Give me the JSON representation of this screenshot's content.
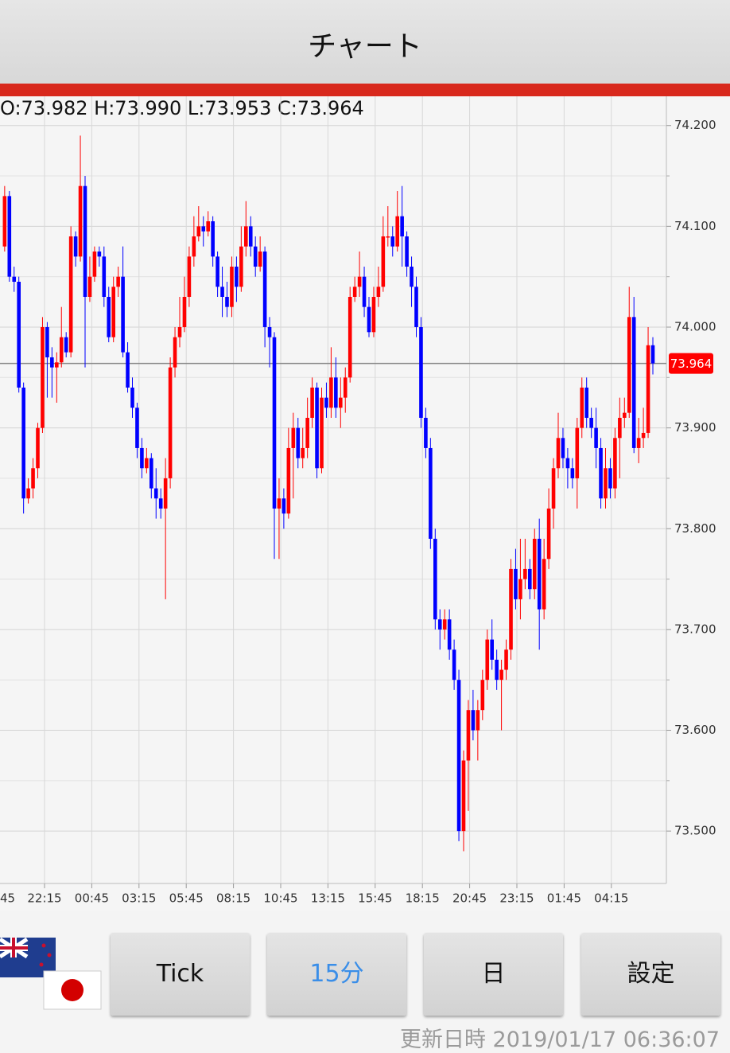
{
  "header": {
    "title": "チャート"
  },
  "chart_data": {
    "type": "candlestick",
    "info_label": "O:73.982 H:73.990 L:73.953 C:73.964",
    "current_price": 73.964,
    "up_color": "#ff0000",
    "down_color": "#0000ff",
    "ylim": [
      73.448,
      74.229
    ],
    "yticks": [
      {
        "value": 73.5,
        "label": "73.500"
      },
      {
        "value": 73.6,
        "label": "73.600"
      },
      {
        "value": 73.7,
        "label": "73.700"
      },
      {
        "value": 73.8,
        "label": "73.800"
      },
      {
        "value": 73.9,
        "label": "73.900"
      },
      {
        "value": 74.0,
        "label": "74.000"
      },
      {
        "value": 74.1,
        "label": "74.100"
      },
      {
        "value": 74.2,
        "label": "74.200"
      }
    ],
    "y_minor_ticks": [
      73.55,
      73.65,
      73.75,
      73.85,
      73.95,
      74.05,
      74.15
    ],
    "xticks": [
      "45",
      "22:15",
      "00:45",
      "03:15",
      "05:45",
      "08:15",
      "10:45",
      "13:15",
      "15:45",
      "18:15",
      "20:45",
      "23:15",
      "01:45",
      "04:15"
    ],
    "grid": true,
    "ohlc": [
      [
        74.08,
        74.14,
        74.075,
        74.13
      ],
      [
        74.13,
        74.135,
        74.045,
        74.05
      ],
      [
        74.05,
        74.06,
        74.035,
        74.045
      ],
      [
        74.045,
        74.05,
        73.935,
        73.94
      ],
      [
        73.94,
        73.945,
        73.815,
        73.83
      ],
      [
        73.83,
        73.85,
        73.825,
        73.84
      ],
      [
        73.84,
        73.87,
        73.83,
        73.86
      ],
      [
        73.86,
        73.905,
        73.85,
        73.9
      ],
      [
        73.9,
        74.01,
        73.895,
        74.0
      ],
      [
        74.0,
        74.005,
        73.93,
        73.97
      ],
      [
        73.97,
        73.98,
        73.93,
        73.96
      ],
      [
        73.96,
        73.975,
        73.925,
        73.965
      ],
      [
        73.965,
        74.02,
        73.96,
        73.99
      ],
      [
        73.99,
        73.995,
        73.97,
        73.975
      ],
      [
        73.975,
        74.1,
        73.97,
        74.09
      ],
      [
        74.09,
        74.095,
        74.06,
        74.07
      ],
      [
        74.07,
        74.19,
        74.065,
        74.14
      ],
      [
        74.14,
        74.15,
        73.96,
        74.03
      ],
      [
        74.03,
        74.07,
        74.025,
        74.05
      ],
      [
        74.05,
        74.08,
        74.045,
        74.075
      ],
      [
        74.075,
        74.08,
        74.06,
        74.07
      ],
      [
        74.07,
        74.08,
        74.02,
        74.03
      ],
      [
        74.03,
        74.04,
        73.985,
        73.99
      ],
      [
        73.99,
        74.05,
        73.985,
        74.04
      ],
      [
        74.04,
        74.06,
        74.03,
        74.05
      ],
      [
        74.05,
        74.08,
        73.97,
        73.975
      ],
      [
        73.975,
        73.985,
        73.935,
        73.94
      ],
      [
        73.94,
        73.95,
        73.91,
        73.92
      ],
      [
        73.92,
        73.925,
        73.87,
        73.88
      ],
      [
        73.88,
        73.89,
        73.85,
        73.86
      ],
      [
        73.86,
        73.88,
        73.855,
        73.87
      ],
      [
        73.87,
        73.875,
        73.83,
        73.84
      ],
      [
        73.84,
        73.86,
        73.81,
        73.83
      ],
      [
        73.83,
        73.84,
        73.81,
        73.82
      ],
      [
        73.82,
        73.87,
        73.73,
        73.85
      ],
      [
        73.85,
        73.97,
        73.84,
        73.96
      ],
      [
        73.96,
        74.0,
        73.95,
        73.99
      ],
      [
        73.99,
        74.03,
        73.98,
        74.0
      ],
      [
        74.0,
        74.05,
        73.995,
        74.03
      ],
      [
        74.03,
        74.08,
        74.02,
        74.07
      ],
      [
        74.07,
        74.11,
        74.06,
        74.09
      ],
      [
        74.09,
        74.12,
        74.085,
        74.1
      ],
      [
        74.1,
        74.11,
        74.08,
        74.095
      ],
      [
        74.095,
        74.115,
        74.09,
        74.105
      ],
      [
        74.105,
        74.11,
        74.06,
        74.07
      ],
      [
        74.07,
        74.075,
        74.03,
        74.04
      ],
      [
        74.04,
        74.06,
        74.01,
        74.03
      ],
      [
        74.03,
        74.045,
        74.01,
        74.02
      ],
      [
        74.02,
        74.07,
        74.01,
        74.06
      ],
      [
        74.06,
        74.07,
        74.025,
        74.04
      ],
      [
        74.04,
        74.1,
        74.035,
        74.08
      ],
      [
        74.08,
        74.125,
        74.07,
        74.1
      ],
      [
        74.1,
        74.11,
        74.07,
        74.08
      ],
      [
        74.08,
        74.09,
        74.05,
        74.06
      ],
      [
        74.06,
        74.09,
        74.055,
        74.075
      ],
      [
        74.075,
        74.08,
        73.98,
        74.0
      ],
      [
        74.0,
        74.01,
        73.96,
        73.99
      ],
      [
        73.99,
        73.995,
        73.77,
        73.82
      ],
      [
        73.82,
        73.85,
        73.77,
        73.83
      ],
      [
        73.83,
        73.84,
        73.8,
        73.815
      ],
      [
        73.815,
        73.9,
        73.81,
        73.88
      ],
      [
        73.88,
        73.915,
        73.83,
        73.9
      ],
      [
        73.9,
        73.91,
        73.86,
        73.87
      ],
      [
        73.87,
        73.9,
        73.86,
        73.88
      ],
      [
        73.88,
        73.93,
        73.87,
        73.91
      ],
      [
        73.91,
        73.95,
        73.9,
        73.94
      ],
      [
        73.94,
        73.945,
        73.85,
        73.86
      ],
      [
        73.86,
        73.94,
        73.855,
        73.93
      ],
      [
        73.93,
        73.945,
        73.91,
        73.92
      ],
      [
        73.92,
        73.98,
        73.91,
        73.95
      ],
      [
        73.95,
        73.97,
        73.91,
        73.92
      ],
      [
        73.92,
        73.95,
        73.9,
        73.93
      ],
      [
        73.93,
        73.96,
        73.915,
        73.95
      ],
      [
        73.95,
        74.04,
        73.945,
        74.03
      ],
      [
        74.03,
        74.05,
        74.025,
        74.04
      ],
      [
        74.04,
        74.075,
        74.03,
        74.05
      ],
      [
        74.05,
        74.06,
        74.01,
        74.02
      ],
      [
        74.02,
        74.03,
        73.99,
        73.995
      ],
      [
        73.995,
        74.04,
        73.99,
        74.03
      ],
      [
        74.03,
        74.06,
        74.02,
        74.04
      ],
      [
        74.04,
        74.11,
        74.035,
        74.09
      ],
      [
        74.09,
        74.12,
        74.08,
        74.09
      ],
      [
        74.09,
        74.1,
        74.07,
        74.08
      ],
      [
        74.08,
        74.135,
        74.075,
        74.11
      ],
      [
        74.11,
        74.14,
        74.06,
        74.09
      ],
      [
        74.09,
        74.095,
        74.05,
        74.06
      ],
      [
        74.06,
        74.07,
        74.02,
        74.04
      ],
      [
        74.04,
        74.05,
        73.99,
        74.0
      ],
      [
        74.0,
        74.01,
        73.9,
        73.91
      ],
      [
        73.91,
        73.92,
        73.87,
        73.88
      ],
      [
        73.88,
        73.89,
        73.78,
        73.79
      ],
      [
        73.79,
        73.8,
        73.7,
        73.71
      ],
      [
        73.71,
        73.72,
        73.68,
        73.7
      ],
      [
        73.7,
        73.72,
        73.69,
        73.71
      ],
      [
        73.71,
        73.72,
        73.67,
        73.68
      ],
      [
        73.68,
        73.69,
        73.64,
        73.65
      ],
      [
        73.65,
        73.66,
        73.49,
        73.5
      ],
      [
        73.5,
        73.58,
        73.48,
        73.57
      ],
      [
        73.57,
        73.63,
        73.52,
        73.62
      ],
      [
        73.62,
        73.64,
        73.59,
        73.6
      ],
      [
        73.6,
        73.63,
        73.57,
        73.62
      ],
      [
        73.62,
        73.66,
        73.61,
        73.65
      ],
      [
        73.65,
        73.7,
        73.64,
        73.69
      ],
      [
        73.69,
        73.71,
        73.66,
        73.67
      ],
      [
        73.67,
        73.68,
        73.64,
        73.65
      ],
      [
        73.65,
        73.67,
        73.6,
        73.66
      ],
      [
        73.66,
        73.69,
        73.65,
        73.68
      ],
      [
        73.68,
        73.77,
        73.67,
        73.76
      ],
      [
        73.76,
        73.78,
        73.72,
        73.73
      ],
      [
        73.73,
        73.79,
        73.71,
        73.75
      ],
      [
        73.75,
        73.79,
        73.74,
        73.76
      ],
      [
        73.76,
        73.77,
        73.73,
        73.74
      ],
      [
        73.74,
        73.8,
        73.73,
        73.79
      ],
      [
        73.79,
        73.81,
        73.68,
        73.72
      ],
      [
        73.72,
        73.79,
        73.71,
        73.77
      ],
      [
        73.77,
        73.84,
        73.76,
        73.82
      ],
      [
        73.82,
        73.87,
        73.8,
        73.86
      ],
      [
        73.86,
        73.915,
        73.85,
        73.89
      ],
      [
        73.89,
        73.9,
        73.86,
        73.87
      ],
      [
        73.87,
        73.88,
        73.84,
        73.86
      ],
      [
        73.86,
        73.87,
        73.84,
        73.85
      ],
      [
        73.85,
        73.91,
        73.82,
        73.9
      ],
      [
        73.9,
        73.95,
        73.89,
        73.94
      ],
      [
        73.94,
        73.95,
        73.9,
        73.91
      ],
      [
        73.91,
        73.92,
        73.89,
        73.9
      ],
      [
        73.9,
        73.92,
        73.86,
        73.88
      ],
      [
        73.88,
        73.89,
        73.82,
        73.83
      ],
      [
        73.83,
        73.88,
        73.82,
        73.86
      ],
      [
        73.86,
        73.87,
        73.83,
        73.84
      ],
      [
        73.84,
        73.9,
        73.83,
        73.89
      ],
      [
        73.89,
        73.93,
        73.85,
        73.91
      ],
      [
        73.91,
        73.93,
        73.9,
        73.915
      ],
      [
        73.915,
        74.04,
        73.91,
        74.01
      ],
      [
        74.01,
        74.03,
        73.875,
        73.88
      ],
      [
        73.88,
        73.91,
        73.865,
        73.89
      ],
      [
        73.89,
        73.92,
        73.88,
        73.895
      ],
      [
        73.895,
        74.0,
        73.89,
        73.982
      ],
      [
        73.982,
        73.99,
        73.953,
        73.964
      ]
    ]
  },
  "buttons": [
    "Tick",
    "15分",
    "日",
    "設定"
  ],
  "updated": "更新日時 2019/01/17 06:36:07"
}
